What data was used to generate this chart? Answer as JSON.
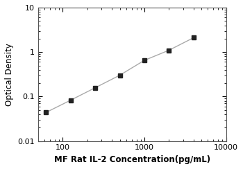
{
  "x_data": [
    62.5,
    125,
    250,
    500,
    1000,
    2000,
    4000
  ],
  "y_data": [
    0.044,
    0.083,
    0.158,
    0.302,
    0.652,
    1.1,
    2.1
  ],
  "xlabel": "MF Rat IL-2 Concentration(pg/mL)",
  "ylabel": "Optical Density",
  "xlim": [
    50,
    10000
  ],
  "ylim": [
    0.01,
    10
  ],
  "xticks": [
    100,
    1000,
    10000
  ],
  "xtick_labels": [
    "100",
    "1000",
    "10000"
  ],
  "yticks": [
    0.01,
    0.1,
    1,
    10
  ],
  "ytick_labels": [
    "0.01",
    "0.1",
    "1",
    "10"
  ],
  "line_color": "#aaaaaa",
  "marker_color": "#222222",
  "marker_size": 4.5,
  "xlabel_fontsize": 8.5,
  "ylabel_fontsize": 8.5,
  "tick_fontsize": 8,
  "xlabel_fontweight": "bold",
  "background_color": "#ffffff"
}
